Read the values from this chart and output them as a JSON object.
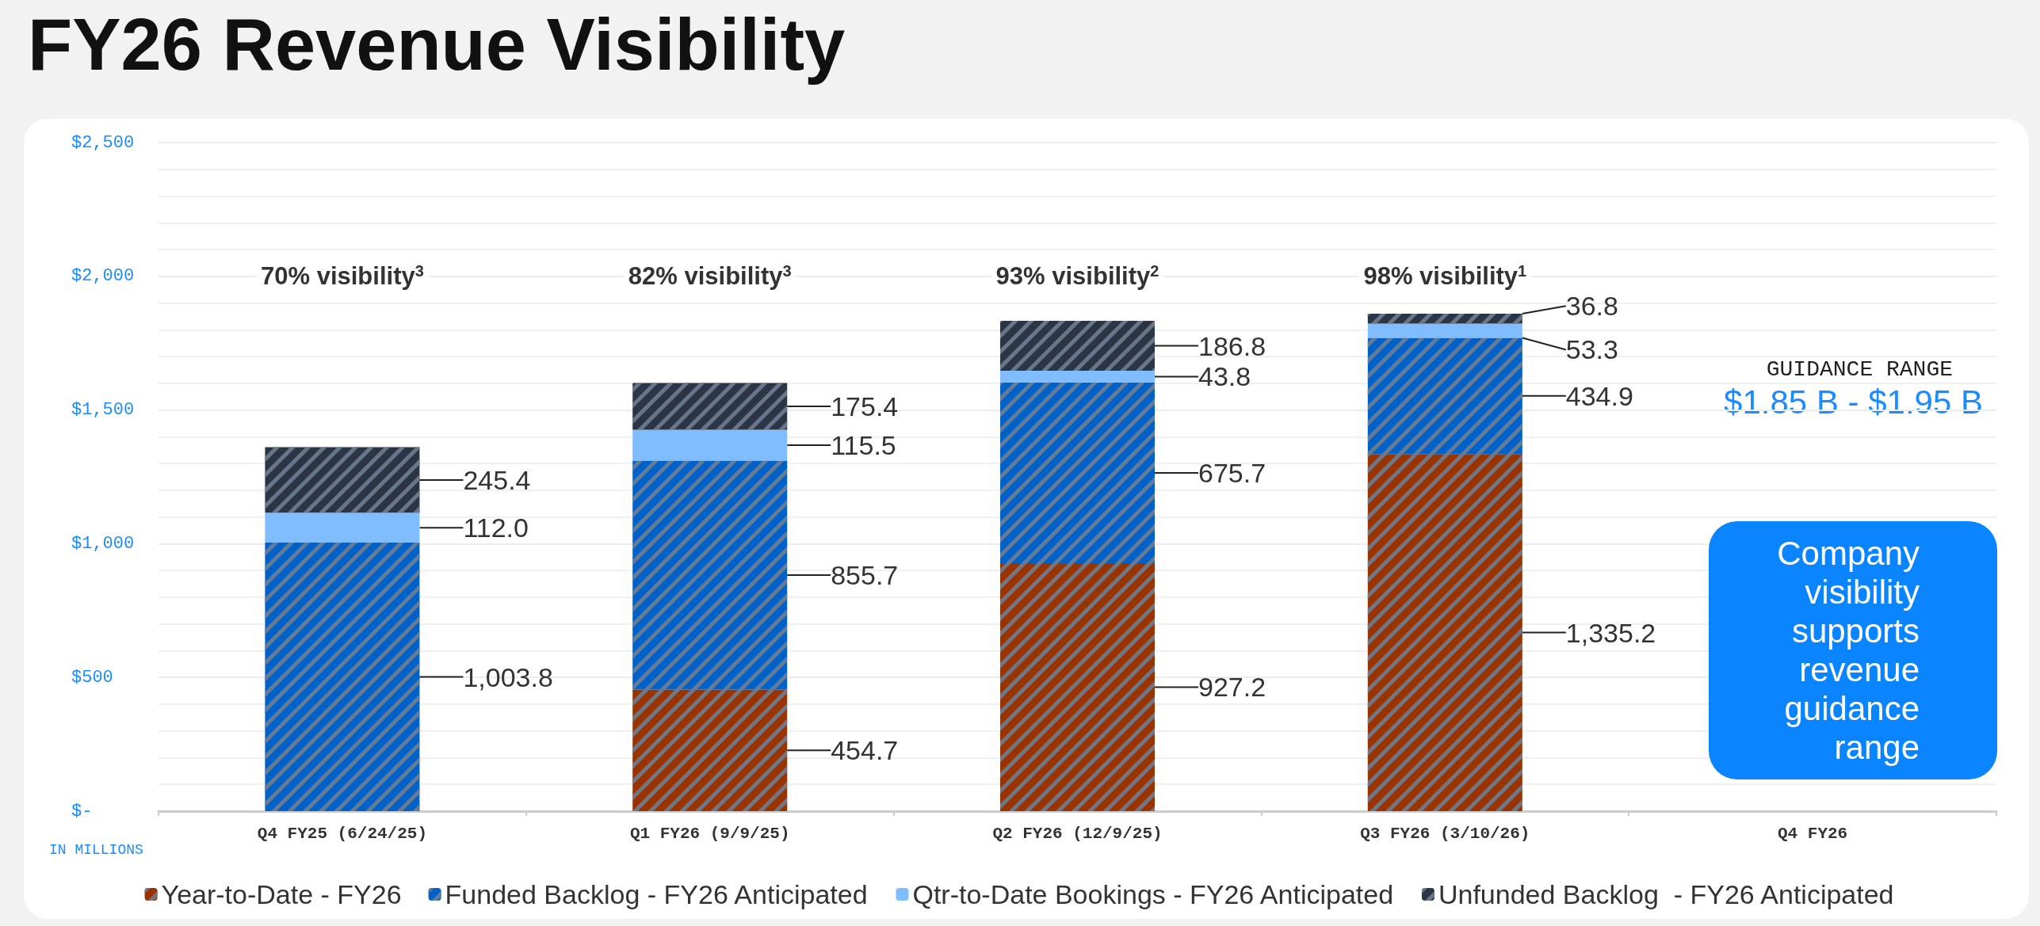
{
  "chart_data": {
    "type": "bar",
    "title": "FY26 Revenue Visibility",
    "stacked": true,
    "categories": [
      "Q4 FY25 (6/24/25)",
      "Q1 FY26 (9/9/25)",
      "Q2 FY26 (12/9/25)",
      "Q3 FY26 (3/10/26)",
      "Q4 FY26"
    ],
    "series": [
      {
        "name": "Year-to-Date - FY26",
        "color": "#993300",
        "values": [
          null,
          454.7,
          927.2,
          1335.2,
          null
        ],
        "value_labels": [
          null,
          "454.7",
          "927.2",
          "1,335.2",
          null
        ]
      },
      {
        "name": "Funded Backlog - FY26 Anticipated",
        "color": "#0061c9",
        "values": [
          1003.8,
          855.7,
          675.7,
          434.9,
          null
        ],
        "value_labels": [
          "1,003.8",
          "855.7",
          "675.7",
          "434.9",
          null
        ]
      },
      {
        "name": "Qtr-to-Date Bookings - FY26 Anticipated",
        "color": "#80bdff",
        "values": [
          112.0,
          115.5,
          43.8,
          53.3,
          null
        ],
        "value_labels": [
          "112.0",
          "115.5",
          "43.8",
          "53.3",
          null
        ]
      },
      {
        "name": "Unfunded Backlog  - FY26 Anticipated",
        "color": "#2b3544",
        "values": [
          245.4,
          175.4,
          186.8,
          36.8,
          null
        ],
        "value_labels": [
          "245.4",
          "175.4",
          "186.8",
          "36.8",
          null
        ]
      }
    ],
    "ylim": [
      0,
      2500
    ],
    "yticks": [
      {
        "value": 0,
        "label": "$-"
      },
      {
        "value": 500,
        "label": "$500"
      },
      {
        "value": 1000,
        "label": "$1,000"
      },
      {
        "value": 1500,
        "label": "$1,500"
      },
      {
        "value": 2000,
        "label": "$2,000"
      },
      {
        "value": 2500,
        "label": "$2,500"
      }
    ],
    "grid": "y",
    "legend": "bottom",
    "annotations": [
      "70% visibility$^{3}$",
      "82% visibility$^{3}$",
      "93% visibility$^{2}$",
      "98% visibility$^{1}$",
      "GUIDANCE RANGE",
      "$1.85 B - $1.95 B",
      "Company visibility supports revenue guidance range",
      "IN MILLIONS"
    ]
  }
}
